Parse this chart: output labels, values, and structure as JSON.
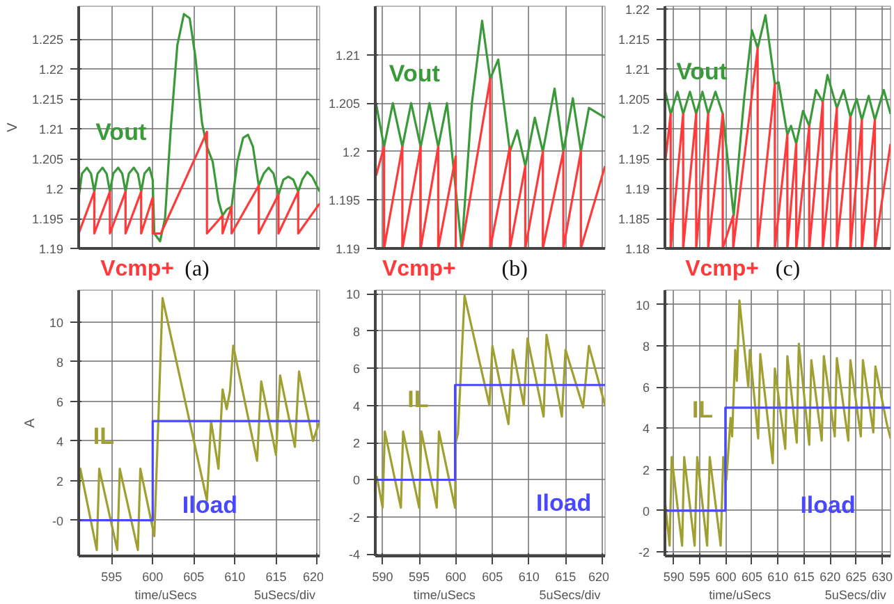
{
  "chart_data": [
    {
      "type": "line",
      "ylabel": "V",
      "tick_labels": "y",
      "grid": true,
      "annotations": [
        "(a)"
      ],
      "xlim": [
        591,
        620.3
      ],
      "ylim": [
        1.19,
        1.2305
      ],
      "xticks": [
        595,
        600,
        605,
        610,
        615,
        620
      ],
      "yticks": [
        1.19,
        1.195,
        1.2,
        1.205,
        1.21,
        1.215,
        1.22,
        1.225
      ],
      "series": [
        {
          "name": "Vout",
          "color": "#3a9a3a",
          "x": [
            591.0,
            591.4,
            592.0,
            592.5,
            592.9,
            593.3,
            593.9,
            594.4,
            594.8,
            595.2,
            595.8,
            596.3,
            596.7,
            597.1,
            597.7,
            598.2,
            598.6,
            599.0,
            599.6,
            600.0,
            600.2,
            600.9,
            601.5,
            602.2,
            603.0,
            603.8,
            604.5,
            605.2,
            606.0,
            606.6,
            607.3,
            608.0,
            608.5,
            609.0,
            609.6,
            610.3,
            611.0,
            611.6,
            612.2,
            612.9,
            613.5,
            614.1,
            614.7,
            615.3,
            615.9,
            616.5,
            617.1,
            617.7,
            618.2,
            618.8,
            619.4,
            620.3
          ],
          "values": [
            1.1985,
            1.2025,
            1.2035,
            1.2025,
            1.1995,
            1.2025,
            1.2035,
            1.2025,
            1.1995,
            1.2025,
            1.2035,
            1.2025,
            1.1995,
            1.2025,
            1.2035,
            1.2025,
            1.1995,
            1.2025,
            1.2035,
            1.2015,
            1.1925,
            1.1912,
            1.195,
            1.21,
            1.224,
            1.2292,
            1.2285,
            1.222,
            1.211,
            1.207,
            1.2045,
            1.198,
            1.1955,
            1.1965,
            1.197,
            1.2045,
            1.2085,
            1.209,
            1.207,
            1.2005,
            1.2025,
            1.2035,
            1.2025,
            1.199,
            1.2015,
            1.202,
            1.2015,
            1.1995,
            1.2015,
            1.2028,
            1.202,
            1.1995
          ]
        },
        {
          "name": "Vcmp+",
          "color": "#ff3a3a",
          "x": [
            591,
            592.9,
            592.9,
            594.8,
            594.8,
            596.7,
            596.7,
            598.6,
            598.6,
            600.0,
            600.0,
            601.0,
            606.6,
            606.6,
            608.5,
            608.5,
            609.6,
            609.6,
            612.9,
            612.9,
            615.3,
            615.3,
            617.7,
            617.7,
            620.3
          ],
          "values": [
            1.1925,
            1.1995,
            1.1925,
            1.1995,
            1.1925,
            1.1995,
            1.1925,
            1.1995,
            1.1925,
            1.1985,
            1.1925,
            1.1925,
            1.2095,
            1.1925,
            1.1955,
            1.1925,
            1.197,
            1.1925,
            1.2005,
            1.1925,
            1.199,
            1.1925,
            1.1995,
            1.1925,
            1.1975
          ]
        }
      ]
    },
    {
      "type": "line",
      "tick_labels": "y",
      "grid": true,
      "annotations": [
        "(b)"
      ],
      "xlim": [
        589,
        620.4
      ],
      "ylim": [
        1.19,
        1.215
      ],
      "xticks": [
        590,
        595,
        600,
        605,
        610,
        615,
        620
      ],
      "yticks": [
        1.19,
        1.195,
        1.2,
        1.205,
        1.21
      ],
      "series": [
        {
          "name": "Vout",
          "color": "#3a9a3a",
          "x": [
            589.1,
            590.2,
            591.4,
            592.7,
            593.9,
            595.2,
            596.4,
            597.6,
            598.8,
            600.8,
            602.2,
            603.6,
            604.7,
            605.8,
            607.4,
            608.4,
            609.5,
            610.8,
            611.9,
            613.5,
            614.7,
            616.0,
            617.1,
            618.2,
            620.4
          ],
          "values": [
            1.205,
            1.2005,
            1.205,
            1.2005,
            1.205,
            1.2005,
            1.205,
            1.2005,
            1.205,
            1.19,
            1.205,
            1.2135,
            1.2075,
            1.2095,
            1.2,
            1.2022,
            1.1985,
            1.2035,
            1.2,
            1.2065,
            1.2,
            1.2055,
            1.2,
            1.2045,
            1.2035
          ]
        },
        {
          "name": "Vcmp+",
          "color": "#ff3a3a",
          "x": [
            589.1,
            590.2,
            590.2,
            592.7,
            592.7,
            595.2,
            595.2,
            597.6,
            597.6,
            600.0,
            600.0,
            600.8,
            604.7,
            604.7,
            607.4,
            607.4,
            609.5,
            609.5,
            611.9,
            611.9,
            614.7,
            614.7,
            617.1,
            617.1,
            620.4
          ],
          "values": [
            1.1975,
            1.2005,
            1.19,
            1.2005,
            1.19,
            1.2005,
            1.19,
            1.2005,
            1.19,
            1.1995,
            1.19,
            1.19,
            1.2075,
            1.19,
            1.2005,
            1.19,
            1.1985,
            1.19,
            1.2,
            1.19,
            1.2,
            1.19,
            1.2,
            1.19,
            1.1985
          ]
        }
      ]
    },
    {
      "type": "line",
      "tick_labels": "y",
      "grid": true,
      "annotations": [
        "(c)"
      ],
      "xlim": [
        588.3,
        631.6
      ],
      "ylim": [
        1.18,
        1.2205
      ],
      "xticks": [
        590,
        595,
        600,
        605,
        610,
        615,
        620,
        625,
        630
      ],
      "yticks": [
        1.18,
        1.185,
        1.19,
        1.195,
        1.2,
        1.205,
        1.21,
        1.215,
        1.22
      ],
      "series": [
        {
          "name": "Vout",
          "color": "#3a9a3a",
          "x": [
            588.3,
            589.4,
            590.7,
            591.8,
            593.1,
            594.3,
            595.5,
            596.6,
            598.0,
            599.4,
            601.5,
            603.5,
            605.0,
            606.1,
            607.6,
            609.4,
            610.1,
            611.8,
            612.5,
            613.5,
            614.8,
            616.0,
            617.3,
            618.6,
            619.5,
            621.3,
            622.6,
            623.9,
            625.1,
            626.1,
            627.4,
            628.6,
            630.3,
            631.6
          ],
          "values": [
            1.2065,
            1.2025,
            1.2062,
            1.2025,
            1.2062,
            1.2025,
            1.2062,
            1.2025,
            1.2062,
            1.2025,
            1.1855,
            1.205,
            1.2165,
            1.2135,
            1.219,
            1.2075,
            1.2078,
            1.199,
            1.2005,
            1.1975,
            1.203,
            1.2005,
            1.2065,
            1.2045,
            1.209,
            1.2035,
            1.2065,
            1.202,
            1.205,
            1.2015,
            1.2055,
            1.2015,
            1.2065,
            1.2025
          ]
        },
        {
          "name": "Vcmp+",
          "color": "#ff3a3a",
          "x": [
            588.3,
            589.4,
            589.4,
            591.8,
            591.8,
            594.3,
            594.3,
            596.6,
            596.6,
            599.4,
            599.4,
            601.4,
            601.4,
            606.1,
            606.1,
            609.4,
            609.4,
            611.8,
            611.8,
            613.5,
            613.5,
            616.0,
            616.0,
            618.6,
            618.6,
            621.3,
            621.3,
            623.9,
            623.9,
            626.1,
            626.1,
            628.6,
            628.6,
            631.6
          ],
          "values": [
            1.194,
            1.2025,
            1.18,
            1.2025,
            1.18,
            1.2025,
            1.18,
            1.2025,
            1.18,
            1.2025,
            1.18,
            1.1855,
            1.18,
            1.2135,
            1.18,
            1.2075,
            1.18,
            1.199,
            1.18,
            1.1975,
            1.18,
            1.2005,
            1.18,
            1.2045,
            1.18,
            1.2035,
            1.18,
            1.202,
            1.18,
            1.2015,
            1.18,
            1.2015,
            1.18,
            1.1975
          ]
        }
      ]
    },
    {
      "type": "line",
      "ylabel": "A",
      "xlabel": "time/uSecs",
      "grid": true,
      "annotations": [
        "5uSecs/div"
      ],
      "xlim": [
        591,
        620.3
      ],
      "ylim": [
        -1.8,
        11.6
      ],
      "xticks": [
        595,
        600,
        605,
        610,
        615,
        620
      ],
      "yticks": [
        {
          "value": 0,
          "label": "-0"
        },
        2,
        4,
        6,
        8,
        10
      ],
      "series": [
        {
          "name": "IL",
          "color": "#a0a032",
          "x": [
            591.0,
            591.2,
            593.2,
            593.5,
            595.7,
            596.0,
            598.2,
            598.5,
            600.2,
            601.2,
            606.6,
            607.1,
            608.0,
            608.5,
            609.0,
            609.4,
            609.8,
            612.7,
            613.2,
            615.0,
            615.5,
            617.3,
            617.8,
            619.5,
            620.3
          ],
          "values": [
            1.0,
            2.6,
            -1.5,
            2.6,
            -1.5,
            2.6,
            -1.5,
            2.6,
            -0.8,
            11.2,
            1.0,
            5.0,
            2.6,
            6.6,
            5.6,
            6.5,
            8.8,
            3.0,
            7.0,
            3.3,
            7.3,
            3.7,
            7.5,
            4.0,
            5.0
          ]
        },
        {
          "name": "Iload",
          "color": "#4848ff",
          "x": [
            591,
            600,
            600,
            620.3
          ],
          "values": [
            0,
            0,
            5,
            5
          ]
        }
      ]
    },
    {
      "type": "line",
      "xlabel": "time/uSecs",
      "grid": true,
      "annotations": [
        "5uSecs/div"
      ],
      "xlim": [
        589,
        620.4
      ],
      "ylim": [
        -4.1,
        10.2
      ],
      "xticks": [
        590,
        595,
        600,
        605,
        610,
        615,
        620
      ],
      "yticks": [
        -4,
        -2,
        0,
        2,
        4,
        6,
        8,
        10
      ],
      "series": [
        {
          "name": "IL",
          "color": "#a0a032",
          "x": [
            589.2,
            590.0,
            590.3,
            592.5,
            592.8,
            595.0,
            595.3,
            597.4,
            597.7,
            599.9,
            600.0,
            600.3,
            601.2,
            604.6,
            605.0,
            607.2,
            607.8,
            609.3,
            609.8,
            612.0,
            612.4,
            614.5,
            615.0,
            617.4,
            618.2,
            620.4
          ],
          "values": [
            0.2,
            -1.5,
            2.6,
            -1.5,
            2.6,
            -1.5,
            2.6,
            -1.5,
            2.6,
            -1.5,
            2.0,
            2.5,
            9.9,
            4.0,
            7.2,
            3.0,
            7.0,
            4.0,
            7.6,
            3.4,
            7.8,
            3.4,
            7.0,
            3.9,
            7.2,
            4.0
          ]
        },
        {
          "name": "Iload",
          "color": "#4848ff",
          "x": [
            589,
            599.9,
            599.9,
            620.4
          ],
          "values": [
            0,
            0,
            5.1,
            5.1
          ]
        }
      ]
    },
    {
      "type": "line",
      "xlabel": "time/uSecs",
      "grid": true,
      "annotations": [
        "5uSecs/div"
      ],
      "xlim": [
        588.3,
        631.6
      ],
      "ylim": [
        -2.2,
        10.7
      ],
      "xticks": [
        590,
        595,
        600,
        605,
        610,
        615,
        620,
        625,
        630
      ],
      "yticks": [
        -2,
        0,
        2,
        4,
        6,
        8,
        10
      ],
      "series": [
        {
          "name": "IL",
          "color": "#a0a032",
          "x": [
            588.3,
            589.2,
            589.6,
            591.6,
            592.0,
            594.0,
            594.5,
            596.4,
            596.9,
            599.0,
            599.5,
            600.1,
            600.9,
            601.2,
            601.8,
            602.1,
            602.6,
            604.3,
            604.6,
            606.2,
            606.6,
            609.0,
            609.4,
            611.4,
            611.8,
            613.6,
            614.0,
            616.0,
            616.4,
            618.4,
            618.8,
            620.9,
            621.3,
            623.5,
            623.9,
            625.9,
            626.3,
            628.3,
            628.7,
            630.9,
            631.6
          ],
          "values": [
            0.5,
            -1.7,
            2.6,
            -1.7,
            2.6,
            -1.7,
            2.6,
            -1.7,
            2.6,
            -1.7,
            2.6,
            1.5,
            4.5,
            3.6,
            7.8,
            6.3,
            10.2,
            6.0,
            7.8,
            3.5,
            7.6,
            2.3,
            6.9,
            3.0,
            7.5,
            3.3,
            8.1,
            3.2,
            7.3,
            3.4,
            7.5,
            3.6,
            7.4,
            3.4,
            7.3,
            3.6,
            7.3,
            3.8,
            7.0,
            4.2,
            3.5
          ]
        },
        {
          "name": "Iload",
          "color": "#4848ff",
          "x": [
            588.3,
            599.9,
            599.9,
            631.6
          ],
          "values": [
            0,
            0,
            5,
            5
          ]
        }
      ]
    }
  ]
}
